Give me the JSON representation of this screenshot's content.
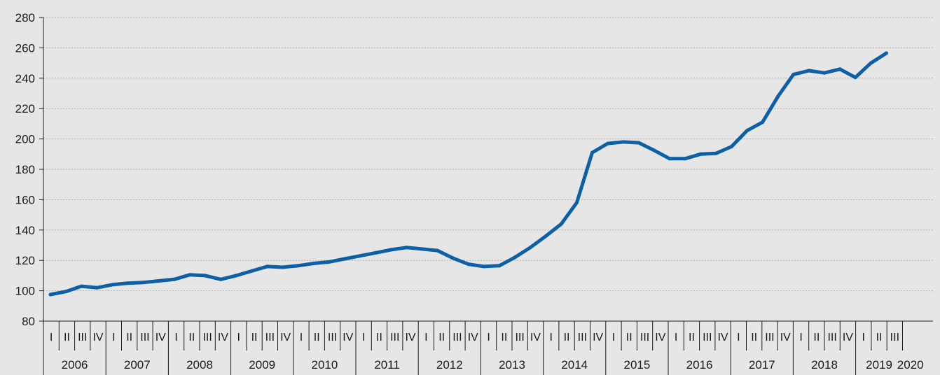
{
  "chart_data": {
    "type": "line",
    "title": "",
    "xlabel": "",
    "ylabel": "",
    "ylim": [
      80,
      280
    ],
    "yticks": [
      80,
      100,
      120,
      140,
      160,
      180,
      200,
      220,
      240,
      260,
      280
    ],
    "grid": "horizontal dotted",
    "colors": {
      "line": "#0d5fa6",
      "grid": "#9a9a9a",
      "axis": "#1a1a1a",
      "background": "#e6e6e6"
    },
    "years": [
      "2006",
      "2007",
      "2008",
      "2009",
      "2010",
      "2011",
      "2012",
      "2013",
      "2014",
      "2015",
      "2016",
      "2017",
      "2018",
      "2019",
      "2020"
    ],
    "quarter_labels": [
      "I",
      "II",
      "III",
      "IV"
    ],
    "series": [
      {
        "values": [
          97.5,
          99.5,
          103,
          102,
          104,
          105,
          105.5,
          106.5,
          107.5,
          110.5,
          110,
          107.5,
          110,
          113,
          116,
          115.5,
          116.5,
          118,
          119,
          121,
          123,
          125,
          127,
          128.5,
          127.5,
          126.5,
          121.5,
          117.5,
          116,
          116.5,
          122,
          128.5,
          136,
          144,
          158,
          191,
          197,
          198,
          197.5,
          192.5,
          187,
          187,
          190,
          190.5,
          195,
          205.5,
          211,
          228,
          242.5,
          245,
          243.5,
          246,
          240.5,
          250,
          256.5
        ]
      }
    ]
  }
}
